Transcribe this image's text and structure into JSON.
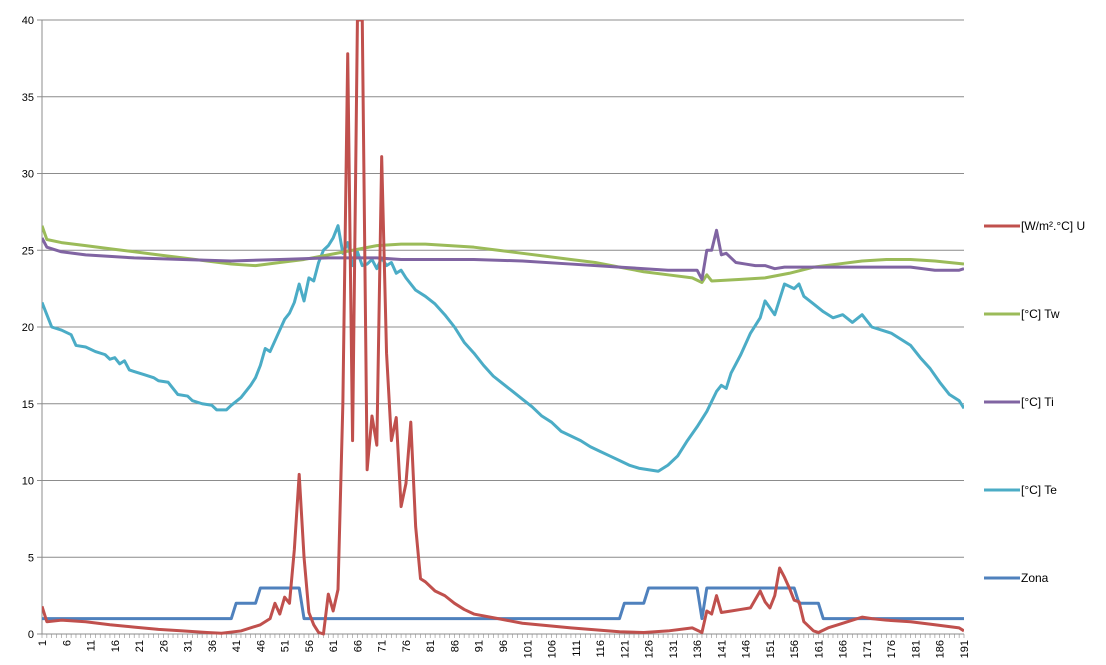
{
  "chart_data": {
    "type": "line",
    "ylim": [
      0,
      40
    ],
    "yticks": [
      0,
      5,
      10,
      15,
      20,
      25,
      30,
      35,
      40
    ],
    "yticks_labels": [
      "0",
      "5",
      "10",
      "15",
      "20",
      "25",
      "30",
      "35",
      "40"
    ],
    "x_count": 191,
    "x_tick_labels": [
      "1",
      "6",
      "11",
      "16",
      "21",
      "26",
      "31",
      "36",
      "41",
      "46",
      "51",
      "56",
      "61",
      "66",
      "71",
      "76",
      "81",
      "86",
      "91",
      "96",
      "101",
      "106",
      "111",
      "116",
      "121",
      "126",
      "131",
      "136",
      "141",
      "146",
      "151",
      "156",
      "161",
      "166",
      "171",
      "176",
      "181",
      "186",
      "191"
    ],
    "grid": "horizontal",
    "legend_position": "right",
    "series": [
      {
        "name": "[W/m².°C] U",
        "color": "#c0504d",
        "points": [
          [
            1,
            1.8
          ],
          [
            2,
            0.8
          ],
          [
            5,
            0.9
          ],
          [
            10,
            0.8
          ],
          [
            15,
            0.6
          ],
          [
            20,
            0.45
          ],
          [
            25,
            0.3
          ],
          [
            30,
            0.2
          ],
          [
            35,
            0.1
          ],
          [
            38,
            0.05
          ],
          [
            42,
            0.2
          ],
          [
            46,
            0.6
          ],
          [
            48,
            1.0
          ],
          [
            49,
            2.0
          ],
          [
            50,
            1.3
          ],
          [
            51,
            2.4
          ],
          [
            52,
            2.0
          ],
          [
            53,
            5.5
          ],
          [
            54,
            10.4
          ],
          [
            55,
            5.0
          ],
          [
            56,
            1.4
          ],
          [
            57,
            0.6
          ],
          [
            58,
            0.1
          ],
          [
            59,
            0.0
          ],
          [
            60,
            2.6
          ],
          [
            61,
            1.5
          ],
          [
            62,
            2.9
          ],
          [
            63,
            15.0
          ],
          [
            64,
            37.8
          ],
          [
            65,
            12.6
          ],
          [
            66,
            40
          ],
          [
            67,
            40
          ],
          [
            68,
            10.7
          ],
          [
            69,
            14.2
          ],
          [
            70,
            12.3
          ],
          [
            71,
            31.1
          ],
          [
            72,
            18.3
          ],
          [
            73,
            12.6
          ],
          [
            74,
            14.1
          ],
          [
            75,
            8.3
          ],
          [
            76,
            9.8
          ],
          [
            77,
            13.8
          ],
          [
            78,
            7.0
          ],
          [
            79,
            3.6
          ],
          [
            80,
            3.4
          ],
          [
            82,
            2.8
          ],
          [
            84,
            2.5
          ],
          [
            86,
            2.0
          ],
          [
            88,
            1.6
          ],
          [
            90,
            1.3
          ],
          [
            95,
            1.0
          ],
          [
            100,
            0.7
          ],
          [
            110,
            0.4
          ],
          [
            120,
            0.15
          ],
          [
            125,
            0.1
          ],
          [
            130,
            0.2
          ],
          [
            135,
            0.4
          ],
          [
            137,
            0.1
          ],
          [
            138,
            1.5
          ],
          [
            139,
            1.3
          ],
          [
            140,
            2.5
          ],
          [
            141,
            1.4
          ],
          [
            143,
            1.5
          ],
          [
            145,
            1.6
          ],
          [
            147,
            1.7
          ],
          [
            149,
            2.8
          ],
          [
            150,
            2.1
          ],
          [
            151,
            1.7
          ],
          [
            152,
            2.5
          ],
          [
            153,
            4.3
          ],
          [
            154,
            3.7
          ],
          [
            155,
            3.0
          ],
          [
            156,
            2.2
          ],
          [
            157,
            2.1
          ],
          [
            158,
            0.8
          ],
          [
            160,
            0.2
          ],
          [
            161,
            0.1
          ],
          [
            163,
            0.4
          ],
          [
            165,
            0.6
          ],
          [
            168,
            0.9
          ],
          [
            170,
            1.1
          ],
          [
            172,
            1.0
          ],
          [
            175,
            0.9
          ],
          [
            180,
            0.8
          ],
          [
            185,
            0.6
          ],
          [
            190,
            0.4
          ],
          [
            191,
            0.2
          ]
        ]
      },
      {
        "name": "[°C] Tw",
        "color": "#9bbb59",
        "points": [
          [
            1,
            26.6
          ],
          [
            2,
            25.7
          ],
          [
            5,
            25.5
          ],
          [
            10,
            25.3
          ],
          [
            15,
            25.1
          ],
          [
            20,
            24.9
          ],
          [
            25,
            24.7
          ],
          [
            30,
            24.5
          ],
          [
            35,
            24.3
          ],
          [
            40,
            24.1
          ],
          [
            45,
            24.0
          ],
          [
            50,
            24.2
          ],
          [
            55,
            24.4
          ],
          [
            60,
            24.7
          ],
          [
            65,
            25.0
          ],
          [
            70,
            25.3
          ],
          [
            75,
            25.4
          ],
          [
            80,
            25.4
          ],
          [
            85,
            25.3
          ],
          [
            90,
            25.2
          ],
          [
            95,
            25.0
          ],
          [
            100,
            24.8
          ],
          [
            105,
            24.6
          ],
          [
            110,
            24.4
          ],
          [
            115,
            24.2
          ],
          [
            120,
            23.9
          ],
          [
            125,
            23.6
          ],
          [
            130,
            23.4
          ],
          [
            135,
            23.2
          ],
          [
            137,
            22.9
          ],
          [
            138,
            23.4
          ],
          [
            139,
            23.0
          ],
          [
            145,
            23.1
          ],
          [
            150,
            23.2
          ],
          [
            155,
            23.5
          ],
          [
            160,
            23.9
          ],
          [
            165,
            24.1
          ],
          [
            170,
            24.3
          ],
          [
            175,
            24.4
          ],
          [
            180,
            24.4
          ],
          [
            185,
            24.3
          ],
          [
            191,
            24.1
          ]
        ]
      },
      {
        "name": "[°C] Ti",
        "color": "#8064a2",
        "points": [
          [
            1,
            25.8
          ],
          [
            2,
            25.2
          ],
          [
            5,
            24.9
          ],
          [
            10,
            24.7
          ],
          [
            15,
            24.6
          ],
          [
            20,
            24.5
          ],
          [
            30,
            24.4
          ],
          [
            40,
            24.3
          ],
          [
            50,
            24.4
          ],
          [
            60,
            24.5
          ],
          [
            65,
            24.5
          ],
          [
            70,
            24.5
          ],
          [
            75,
            24.4
          ],
          [
            80,
            24.4
          ],
          [
            90,
            24.4
          ],
          [
            100,
            24.3
          ],
          [
            110,
            24.1
          ],
          [
            120,
            23.9
          ],
          [
            130,
            23.7
          ],
          [
            136,
            23.7
          ],
          [
            137,
            23.1
          ],
          [
            138,
            25.0
          ],
          [
            139,
            25.0
          ],
          [
            140,
            26.3
          ],
          [
            141,
            24.7
          ],
          [
            142,
            24.8
          ],
          [
            143,
            24.5
          ],
          [
            144,
            24.2
          ],
          [
            146,
            24.1
          ],
          [
            148,
            24.0
          ],
          [
            150,
            24.0
          ],
          [
            152,
            23.8
          ],
          [
            154,
            23.9
          ],
          [
            160,
            23.9
          ],
          [
            170,
            23.9
          ],
          [
            180,
            23.9
          ],
          [
            185,
            23.7
          ],
          [
            190,
            23.7
          ],
          [
            191,
            23.8
          ]
        ]
      },
      {
        "name": "[°C] Te",
        "color": "#4bacc6",
        "points": [
          [
            1,
            21.6
          ],
          [
            2,
            20.8
          ],
          [
            3,
            20.0
          ],
          [
            5,
            19.8
          ],
          [
            7,
            19.5
          ],
          [
            8,
            18.8
          ],
          [
            10,
            18.7
          ],
          [
            12,
            18.4
          ],
          [
            14,
            18.2
          ],
          [
            15,
            17.9
          ],
          [
            16,
            18.0
          ],
          [
            17,
            17.6
          ],
          [
            18,
            17.8
          ],
          [
            19,
            17.2
          ],
          [
            20,
            17.1
          ],
          [
            22,
            16.9
          ],
          [
            24,
            16.7
          ],
          [
            25,
            16.5
          ],
          [
            27,
            16.4
          ],
          [
            28,
            16.0
          ],
          [
            29,
            15.6
          ],
          [
            31,
            15.5
          ],
          [
            32,
            15.2
          ],
          [
            34,
            15.0
          ],
          [
            36,
            14.9
          ],
          [
            37,
            14.6
          ],
          [
            39,
            14.6
          ],
          [
            40,
            14.9
          ],
          [
            42,
            15.4
          ],
          [
            44,
            16.2
          ],
          [
            45,
            16.7
          ],
          [
            46,
            17.5
          ],
          [
            47,
            18.6
          ],
          [
            48,
            18.4
          ],
          [
            49,
            19.1
          ],
          [
            50,
            19.8
          ],
          [
            51,
            20.5
          ],
          [
            52,
            20.9
          ],
          [
            53,
            21.6
          ],
          [
            54,
            22.8
          ],
          [
            55,
            21.7
          ],
          [
            56,
            23.2
          ],
          [
            57,
            23.0
          ],
          [
            58,
            24.2
          ],
          [
            59,
            25.0
          ],
          [
            60,
            25.3
          ],
          [
            61,
            25.8
          ],
          [
            62,
            26.6
          ],
          [
            63,
            24.8
          ],
          [
            64,
            25.5
          ],
          [
            65,
            24.0
          ],
          [
            66,
            24.9
          ],
          [
            67,
            24.0
          ],
          [
            68,
            24.1
          ],
          [
            69,
            24.4
          ],
          [
            70,
            23.8
          ],
          [
            71,
            24.5
          ],
          [
            72,
            24.0
          ],
          [
            73,
            24.2
          ],
          [
            74,
            23.5
          ],
          [
            75,
            23.7
          ],
          [
            76,
            23.2
          ],
          [
            78,
            22.4
          ],
          [
            80,
            22.0
          ],
          [
            82,
            21.5
          ],
          [
            84,
            20.8
          ],
          [
            86,
            20.0
          ],
          [
            88,
            19.0
          ],
          [
            90,
            18.3
          ],
          [
            92,
            17.5
          ],
          [
            94,
            16.8
          ],
          [
            96,
            16.3
          ],
          [
            98,
            15.8
          ],
          [
            100,
            15.3
          ],
          [
            102,
            14.8
          ],
          [
            104,
            14.2
          ],
          [
            106,
            13.8
          ],
          [
            108,
            13.2
          ],
          [
            110,
            12.9
          ],
          [
            112,
            12.6
          ],
          [
            114,
            12.2
          ],
          [
            116,
            11.9
          ],
          [
            118,
            11.6
          ],
          [
            120,
            11.3
          ],
          [
            122,
            11.0
          ],
          [
            124,
            10.8
          ],
          [
            126,
            10.7
          ],
          [
            128,
            10.6
          ],
          [
            130,
            11.0
          ],
          [
            132,
            11.6
          ],
          [
            134,
            12.6
          ],
          [
            136,
            13.5
          ],
          [
            138,
            14.5
          ],
          [
            140,
            15.8
          ],
          [
            141,
            16.2
          ],
          [
            142,
            16.0
          ],
          [
            143,
            17.0
          ],
          [
            145,
            18.2
          ],
          [
            147,
            19.6
          ],
          [
            149,
            20.6
          ],
          [
            150,
            21.7
          ],
          [
            152,
            20.8
          ],
          [
            154,
            22.8
          ],
          [
            156,
            22.5
          ],
          [
            157,
            22.8
          ],
          [
            158,
            22.0
          ],
          [
            160,
            21.5
          ],
          [
            162,
            21.0
          ],
          [
            164,
            20.6
          ],
          [
            166,
            20.8
          ],
          [
            168,
            20.3
          ],
          [
            170,
            20.8
          ],
          [
            172,
            20.0
          ],
          [
            174,
            19.8
          ],
          [
            176,
            19.6
          ],
          [
            178,
            19.2
          ],
          [
            180,
            18.8
          ],
          [
            182,
            18.0
          ],
          [
            184,
            17.3
          ],
          [
            186,
            16.4
          ],
          [
            188,
            15.6
          ],
          [
            190,
            15.2
          ],
          [
            191,
            14.7
          ]
        ]
      },
      {
        "name": "Zona",
        "color": "#4f81bd",
        "points": [
          [
            1,
            1
          ],
          [
            40,
            1
          ],
          [
            41,
            2
          ],
          [
            45,
            2
          ],
          [
            46,
            3
          ],
          [
            54,
            3
          ],
          [
            55,
            1
          ],
          [
            120,
            1
          ],
          [
            121,
            2
          ],
          [
            125,
            2
          ],
          [
            126,
            3
          ],
          [
            136,
            3
          ],
          [
            137,
            1
          ],
          [
            138,
            3
          ],
          [
            156,
            3
          ],
          [
            157,
            2
          ],
          [
            161,
            2
          ],
          [
            162,
            1
          ],
          [
            191,
            1
          ]
        ]
      }
    ]
  }
}
